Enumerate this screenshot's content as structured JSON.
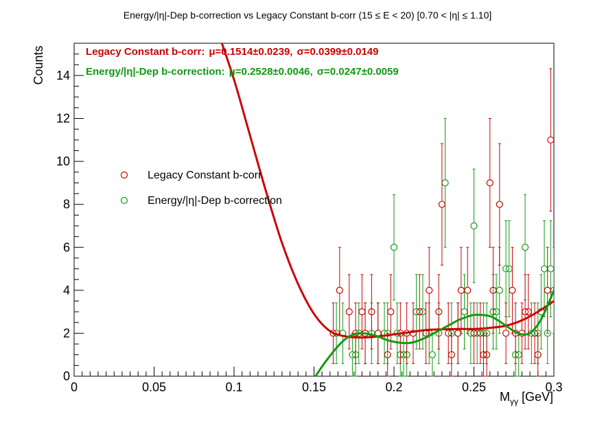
{
  "chart_data": {
    "type": "scatter",
    "title": "Energy/|η|-Dep b-correction vs Legacy Constant b-corr   (15 ≤ E < 20)   [0.70 < |η| ≤ 1.10]",
    "xlabel": "M",
    "xlabel_sub": "γγ",
    "xlabel_unit": " [GeV]",
    "ylabel": "Counts",
    "xlim": [
      0,
      0.3
    ],
    "ylim": [
      0,
      15.5
    ],
    "xticks": [
      0,
      0.05,
      0.1,
      0.15,
      0.2,
      0.25,
      0.3
    ],
    "xtick_labels": [
      "0",
      "0.05",
      "0.1",
      "0.15",
      "0.2",
      "0.25",
      "0.3"
    ],
    "yticks": [
      0,
      2,
      4,
      6,
      8,
      10,
      12,
      14
    ],
    "ytick_labels": [
      "0",
      "2",
      "4",
      "6",
      "8",
      "10",
      "12",
      "14"
    ],
    "grid": false,
    "legend_position": "middle-left",
    "stats": [
      {
        "label": "Legacy Constant b-corr:",
        "mu_label": "μ=0.1514±0.0239,",
        "sigma_label": "σ=0.0399±0.0149",
        "color": "#cc0000"
      },
      {
        "label": "Energy/|η|-Dep b-correction:",
        "mu_label": "μ=0.2528±0.0046,",
        "sigma_label": "σ=0.0247±0.0059",
        "color": "#119911"
      }
    ],
    "series": [
      {
        "name": "Legacy Constant b-corr",
        "color": "#cc0000",
        "points": [
          [
            0.162,
            2
          ],
          [
            0.166,
            4
          ],
          [
            0.172,
            3
          ],
          [
            0.176,
            2
          ],
          [
            0.18,
            3
          ],
          [
            0.182,
            2
          ],
          [
            0.186,
            3
          ],
          [
            0.19,
            2
          ],
          [
            0.196,
            1
          ],
          [
            0.198,
            3
          ],
          [
            0.204,
            2
          ],
          [
            0.208,
            2
          ],
          [
            0.212,
            2
          ],
          [
            0.216,
            3
          ],
          [
            0.22,
            2
          ],
          [
            0.222,
            4
          ],
          [
            0.228,
            3
          ],
          [
            0.23,
            8
          ],
          [
            0.234,
            2
          ],
          [
            0.236,
            1
          ],
          [
            0.24,
            2
          ],
          [
            0.242,
            4
          ],
          [
            0.246,
            4
          ],
          [
            0.25,
            2
          ],
          [
            0.254,
            2
          ],
          [
            0.256,
            1
          ],
          [
            0.258,
            1
          ],
          [
            0.26,
            9
          ],
          [
            0.262,
            4
          ],
          [
            0.266,
            8
          ],
          [
            0.27,
            2
          ],
          [
            0.274,
            4
          ],
          [
            0.276,
            2
          ],
          [
            0.28,
            2
          ],
          [
            0.282,
            3
          ],
          [
            0.284,
            3
          ],
          [
            0.288,
            2
          ],
          [
            0.29,
            1
          ],
          [
            0.296,
            4
          ],
          [
            0.298,
            11
          ]
        ],
        "fit": {
          "x": [
            0.08,
            0.09,
            0.1,
            0.11,
            0.12,
            0.13,
            0.14,
            0.15,
            0.16,
            0.17,
            0.18,
            0.19,
            0.2,
            0.21,
            0.22,
            0.23,
            0.24,
            0.25,
            0.26,
            0.27,
            0.28,
            0.29,
            0.3
          ],
          "y": [
            18.0,
            16.0,
            13.8,
            11.2,
            8.6,
            6.2,
            4.3,
            2.9,
            2.1,
            1.85,
            1.8,
            1.85,
            1.95,
            2.05,
            2.15,
            2.18,
            2.2,
            2.2,
            2.25,
            2.35,
            2.6,
            3.0,
            3.5
          ]
        }
      },
      {
        "name": "Energy/|η|-Dep b-correction",
        "color": "#119911",
        "points": [
          [
            0.164,
            2
          ],
          [
            0.168,
            2
          ],
          [
            0.174,
            1
          ],
          [
            0.176,
            1
          ],
          [
            0.178,
            2
          ],
          [
            0.182,
            2
          ],
          [
            0.186,
            2
          ],
          [
            0.19,
            2
          ],
          [
            0.194,
            2
          ],
          [
            0.196,
            2
          ],
          [
            0.2,
            6
          ],
          [
            0.202,
            2
          ],
          [
            0.204,
            1
          ],
          [
            0.206,
            1
          ],
          [
            0.208,
            1
          ],
          [
            0.214,
            3
          ],
          [
            0.218,
            3
          ],
          [
            0.222,
            2
          ],
          [
            0.224,
            1
          ],
          [
            0.228,
            2
          ],
          [
            0.232,
            9
          ],
          [
            0.236,
            2
          ],
          [
            0.24,
            2
          ],
          [
            0.244,
            3
          ],
          [
            0.248,
            2
          ],
          [
            0.25,
            7
          ],
          [
            0.252,
            2
          ],
          [
            0.256,
            2
          ],
          [
            0.258,
            2
          ],
          [
            0.262,
            3
          ],
          [
            0.264,
            3
          ],
          [
            0.266,
            4
          ],
          [
            0.27,
            5
          ],
          [
            0.272,
            5
          ],
          [
            0.276,
            1
          ],
          [
            0.278,
            1
          ],
          [
            0.282,
            6
          ],
          [
            0.286,
            2
          ],
          [
            0.29,
            2
          ],
          [
            0.292,
            3
          ],
          [
            0.294,
            5
          ],
          [
            0.296,
            2
          ],
          [
            0.298,
            5
          ],
          [
            0.3,
            4
          ]
        ],
        "fit": {
          "x": [
            0.151,
            0.155,
            0.16,
            0.165,
            0.17,
            0.175,
            0.18,
            0.185,
            0.19,
            0.195,
            0.2,
            0.205,
            0.21,
            0.215,
            0.22,
            0.225,
            0.23,
            0.235,
            0.24,
            0.245,
            0.25,
            0.255,
            0.26,
            0.265,
            0.27,
            0.275,
            0.28,
            0.285,
            0.29,
            0.295,
            0.3
          ],
          "y": [
            0.0,
            0.45,
            0.95,
            1.4,
            1.75,
            1.95,
            2.0,
            1.95,
            1.85,
            1.7,
            1.6,
            1.55,
            1.55,
            1.65,
            1.8,
            2.0,
            2.2,
            2.4,
            2.6,
            2.75,
            2.85,
            2.85,
            2.8,
            2.6,
            2.35,
            2.1,
            1.95,
            2.0,
            2.4,
            3.1,
            4.0
          ]
        }
      }
    ]
  }
}
